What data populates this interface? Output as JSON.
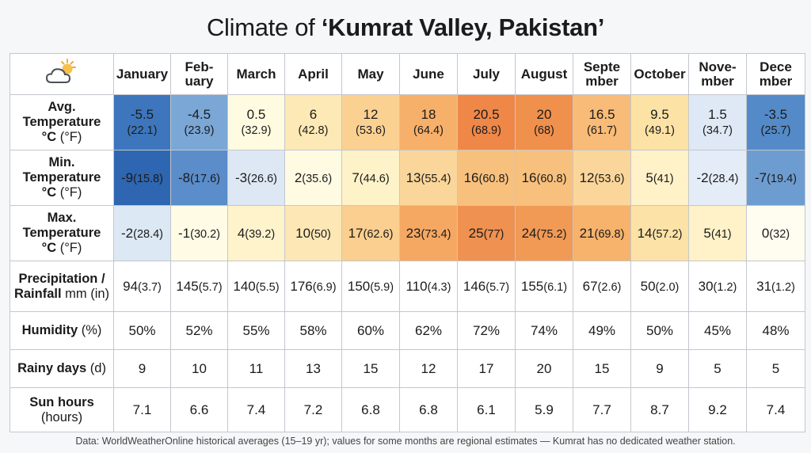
{
  "title": {
    "prefix": "Climate of ",
    "place": "‘Kumrat Valley, Pakistan’"
  },
  "icons": {
    "corner": "cloud-sun-icon"
  },
  "months": [
    "January",
    "Feb-\nuary",
    "March",
    "April",
    "May",
    "June",
    "July",
    "August",
    "Septe\nmber",
    "October",
    "Nove-\nmber",
    "Dece\nmber"
  ],
  "rows": {
    "avg_temp": {
      "label": "Avg.\nTemperature\n°C",
      "unit": " (°F)",
      "cells": [
        {
          "c": "-5.5",
          "f": "(22.1)"
        },
        {
          "c": "-4.5",
          "f": "(23.9)"
        },
        {
          "c": "0.5",
          "f": "(32.9)"
        },
        {
          "c": "6",
          "f": "(42.8)"
        },
        {
          "c": "12",
          "f": "(53.6)"
        },
        {
          "c": "18",
          "f": "(64.4)"
        },
        {
          "c": "20.5",
          "f": "(68.9)"
        },
        {
          "c": "20",
          "f": "(68)"
        },
        {
          "c": "16.5",
          "f": "(61.7)"
        },
        {
          "c": "9.5",
          "f": "(49.1)"
        },
        {
          "c": "1.5",
          "f": "(34.7)"
        },
        {
          "c": "-3.5",
          "f": "(25.7)"
        }
      ]
    },
    "min_temp": {
      "label": "Min.\nTemperature\n°C",
      "unit": " (°F)",
      "cells": [
        {
          "c": "-9",
          "f": "(15.8)"
        },
        {
          "c": "-8",
          "f": "(17.6)"
        },
        {
          "c": "-3",
          "f": "(26.6)"
        },
        {
          "c": "2",
          "f": "(35.6)"
        },
        {
          "c": "7",
          "f": "(44.6)"
        },
        {
          "c": "13",
          "f": "(55.4)"
        },
        {
          "c": "16",
          "f": "(60.8)"
        },
        {
          "c": "16",
          "f": "(60.8)"
        },
        {
          "c": "12",
          "f": "(53.6)"
        },
        {
          "c": "5",
          "f": "(41)"
        },
        {
          "c": "-2",
          "f": "(28.4)"
        },
        {
          "c": "-7",
          "f": "(19.4)"
        }
      ]
    },
    "max_temp": {
      "label": "Max.\nTemperature\n°C",
      "unit": " (°F)",
      "cells": [
        {
          "c": "-2",
          "f": "(28.4)"
        },
        {
          "c": "-1",
          "f": "(30.2)"
        },
        {
          "c": "4",
          "f": "(39.2)"
        },
        {
          "c": "10",
          "f": "(50)"
        },
        {
          "c": "17",
          "f": "(62.6)"
        },
        {
          "c": "23",
          "f": "(73.4)"
        },
        {
          "c": "25",
          "f": "(77)"
        },
        {
          "c": "24",
          "f": "(75.2)"
        },
        {
          "c": "21",
          "f": "(69.8)"
        },
        {
          "c": "14",
          "f": "(57.2)"
        },
        {
          "c": "5",
          "f": "(41)"
        },
        {
          "c": "0",
          "f": "(32)"
        }
      ]
    },
    "precipitation": {
      "label": "Precipitation /\nRainfall",
      "unit": " mm (in)",
      "cells": [
        {
          "c": "94",
          "f": "(3.7)"
        },
        {
          "c": "145",
          "f": "(5.7)"
        },
        {
          "c": "140",
          "f": "(5.5)"
        },
        {
          "c": "176",
          "f": "(6.9)"
        },
        {
          "c": "150",
          "f": "(5.9)"
        },
        {
          "c": "110",
          "f": "(4.3)"
        },
        {
          "c": "146",
          "f": "(5.7)"
        },
        {
          "c": "155",
          "f": "(6.1)"
        },
        {
          "c": "67",
          "f": "(2.6)"
        },
        {
          "c": "50",
          "f": "(2.0)"
        },
        {
          "c": "30",
          "f": "(1.2)"
        },
        {
          "c": "31",
          "f": "(1.2)"
        }
      ]
    },
    "humidity": {
      "label": "Humidity",
      "unit": " (%)",
      "cells": [
        "50%",
        "52%",
        "55%",
        "58%",
        "60%",
        "62%",
        "72%",
        "74%",
        "49%",
        "50%",
        "45%",
        "48%"
      ]
    },
    "rainy_days": {
      "label": "Rainy days",
      "unit": " (d)",
      "cells": [
        "9",
        "10",
        "11",
        "13",
        "15",
        "12",
        "17",
        "20",
        "15",
        "9",
        "5",
        "5"
      ]
    },
    "sun_hours": {
      "label": "Sun hours",
      "unit": "\n(hours)",
      "cells": [
        "7.1",
        "6.6",
        "7.4",
        "7.2",
        "6.8",
        "6.8",
        "6.1",
        "5.9",
        "7.7",
        "8.7",
        "9.2",
        "7.4"
      ]
    }
  },
  "colors": {
    "avg_temp": [
      "#3d76bd",
      "#7aa7d6",
      "#fffbe0",
      "#fde9b5",
      "#fbd192",
      "#f7b06a",
      "#ef8748",
      "#f0904d",
      "#f8bb78",
      "#fde2a6",
      "#dfe9f5",
      "#548ac8"
    ],
    "min_temp": [
      "#2f66b1",
      "#5a8dc9",
      "#dde8f4",
      "#fffbe3",
      "#fef2c8",
      "#fbd69a",
      "#f8c07d",
      "#f8c07d",
      "#fbd69a",
      "#fff1c8",
      "#e4edf7",
      "#6d9dd0"
    ],
    "max_temp": [
      "#dce8f4",
      "#fffbe5",
      "#fff3cc",
      "#fde7b4",
      "#fbcf8f",
      "#f5a862",
      "#ef9150",
      "#f09a56",
      "#f7b26b",
      "#fce2a7",
      "#fff1c8",
      "#fffdf0"
    ]
  },
  "footnote": "Data: WorldWeatherOnline historical averages (15–19 yr); values for some months are regional estimates — Kumrat has no dedicated weather station."
}
